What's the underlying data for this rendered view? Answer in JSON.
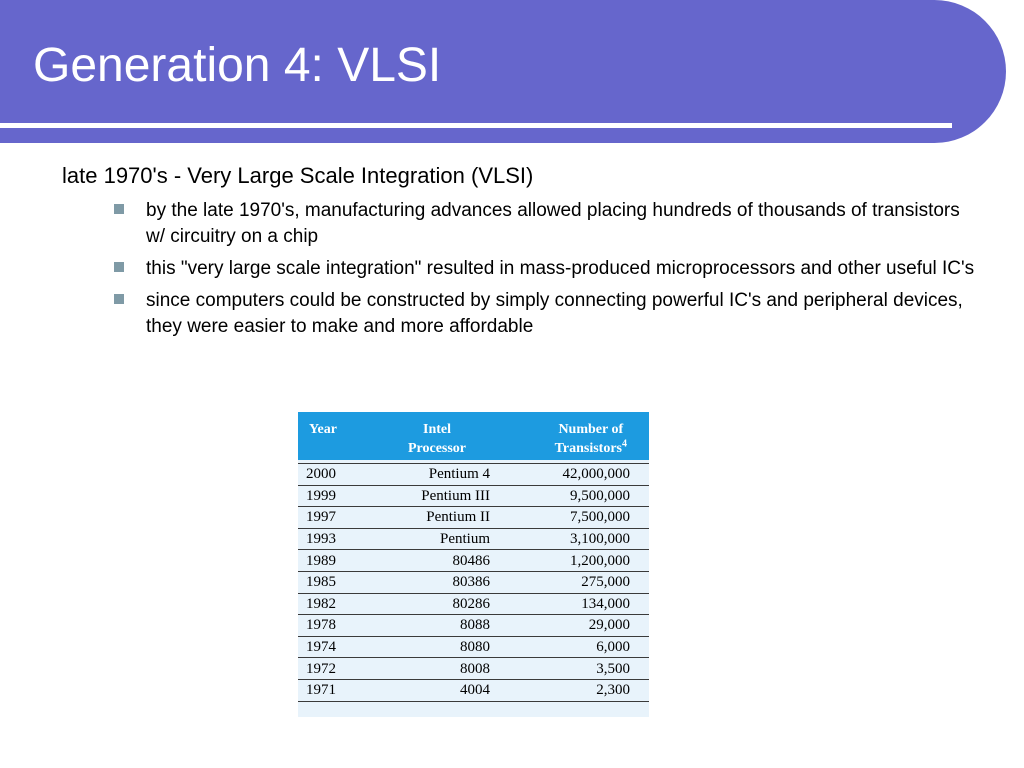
{
  "slide": {
    "title": "Generation 4: VLSI",
    "lead": "late 1970's - Very Large Scale Integration (VLSI)",
    "bullets": [
      "by the late 1970's, manufacturing advances allowed placing hundreds of thousands of transistors w/ circuitry on a chip",
      "this \"very large scale integration\" resulted in mass-produced microprocessors and other useful IC's",
      "since computers could be constructed by simply connecting powerful IC's and peripheral devices, they were easier to make and more affordable"
    ]
  },
  "table": {
    "headers": {
      "year": "Year",
      "processor_line1": "Intel",
      "processor_line2": "Processor",
      "transistors_line1": "Number of",
      "transistors_line2": "Transistors",
      "transistors_footnote": "4"
    },
    "rows": [
      {
        "year": "2000",
        "processor": "Pentium 4",
        "transistors": "42,000,000"
      },
      {
        "year": "1999",
        "processor": "Pentium III",
        "transistors": "9,500,000"
      },
      {
        "year": "1997",
        "processor": "Pentium II",
        "transistors": "7,500,000"
      },
      {
        "year": "1993",
        "processor": "Pentium",
        "transistors": "3,100,000"
      },
      {
        "year": "1989",
        "processor": "80486",
        "transistors": "1,200,000"
      },
      {
        "year": "1985",
        "processor": "80386",
        "transistors": "275,000"
      },
      {
        "year": "1982",
        "processor": "80286",
        "transistors": "134,000"
      },
      {
        "year": "1978",
        "processor": "8088",
        "transistors": "29,000"
      },
      {
        "year": "1974",
        "processor": "8080",
        "transistors": "6,000"
      },
      {
        "year": "1972",
        "processor": "8008",
        "transistors": "3,500"
      },
      {
        "year": "1971",
        "processor": "4004",
        "transistors": "2,300"
      }
    ]
  },
  "colors": {
    "title_bar": "#6666cc",
    "table_header": "#1d9be0",
    "table_body": "#e8f3fb",
    "bullet": "#7f9aa6"
  }
}
